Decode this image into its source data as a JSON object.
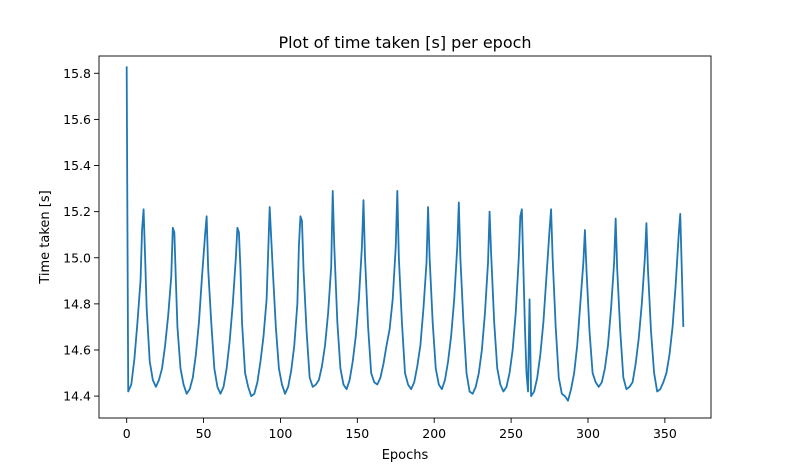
{
  "chart_data": {
    "type": "line",
    "title": "Plot of time taken [s] per epoch",
    "xlabel": "Epochs",
    "ylabel": "Time taken [s]",
    "xlim": [
      -18,
      380
    ],
    "ylim": [
      14.305,
      15.875
    ],
    "xticks": [
      0,
      50,
      100,
      150,
      200,
      250,
      300,
      350
    ],
    "yticks": [
      14.4,
      14.6,
      14.8,
      15.0,
      15.2,
      15.4,
      15.6,
      15.8
    ],
    "grid": false,
    "series": [
      {
        "color": "#1f77b4",
        "x": [
          0,
          1,
          3,
          5,
          7,
          9,
          10,
          11,
          12,
          13,
          15,
          17,
          19,
          21,
          23,
          25,
          27,
          29,
          30,
          31,
          32,
          33,
          35,
          37,
          39,
          41,
          43,
          45,
          47,
          49,
          51,
          52,
          53,
          55,
          57,
          59,
          61,
          63,
          65,
          67,
          69,
          71,
          72,
          73,
          74,
          75,
          77,
          79,
          81,
          83,
          85,
          87,
          89,
          91,
          92,
          93,
          95,
          97,
          99,
          101,
          103,
          105,
          107,
          109,
          111,
          112,
          113,
          114,
          115,
          117,
          119,
          121,
          123,
          125,
          127,
          129,
          131,
          133,
          134,
          135,
          137,
          139,
          141,
          143,
          145,
          147,
          149,
          151,
          153,
          154,
          155,
          157,
          159,
          161,
          163,
          165,
          167,
          169,
          171,
          173,
          175,
          176,
          177,
          179,
          181,
          183,
          185,
          187,
          189,
          191,
          193,
          195,
          196,
          197,
          199,
          201,
          203,
          205,
          207,
          209,
          211,
          213,
          215,
          216,
          217,
          219,
          221,
          223,
          225,
          227,
          229,
          231,
          233,
          235,
          236,
          237,
          239,
          241,
          243,
          245,
          247,
          249,
          251,
          253,
          255,
          256,
          257,
          258,
          259,
          260,
          261,
          262,
          263,
          265,
          267,
          269,
          271,
          273,
          275,
          276,
          277,
          279,
          281,
          283,
          285,
          287,
          289,
          291,
          293,
          295,
          297,
          298,
          299,
          301,
          303,
          305,
          307,
          309,
          311,
          313,
          315,
          317,
          318,
          319,
          321,
          323,
          325,
          327,
          329,
          331,
          333,
          335,
          337,
          338,
          339,
          341,
          343,
          345,
          347,
          349,
          351,
          353,
          355,
          357,
          359,
          360,
          361,
          362
        ],
        "y": [
          15.83,
          14.42,
          14.45,
          14.56,
          14.72,
          14.9,
          15.12,
          15.21,
          15.0,
          14.78,
          14.55,
          14.47,
          14.44,
          14.47,
          14.52,
          14.62,
          14.75,
          14.92,
          15.13,
          15.11,
          14.9,
          14.7,
          14.52,
          14.45,
          14.41,
          14.43,
          14.48,
          14.58,
          14.72,
          14.92,
          15.1,
          15.18,
          14.95,
          14.72,
          14.52,
          14.44,
          14.41,
          14.44,
          14.52,
          14.64,
          14.8,
          15.0,
          15.13,
          15.11,
          14.95,
          14.72,
          14.5,
          14.44,
          14.4,
          14.41,
          14.46,
          14.55,
          14.66,
          14.82,
          15.02,
          15.22,
          14.95,
          14.7,
          14.52,
          14.45,
          14.41,
          14.44,
          14.51,
          14.62,
          14.8,
          15.05,
          15.18,
          15.16,
          14.95,
          14.68,
          14.48,
          14.44,
          14.45,
          14.47,
          14.53,
          14.62,
          14.76,
          14.96,
          15.29,
          15.05,
          14.72,
          14.52,
          14.45,
          14.43,
          14.47,
          14.55,
          14.66,
          14.82,
          15.05,
          15.25,
          15.0,
          14.7,
          14.5,
          14.46,
          14.45,
          14.48,
          14.54,
          14.62,
          14.69,
          14.82,
          15.05,
          15.29,
          15.0,
          14.72,
          14.5,
          14.45,
          14.43,
          14.46,
          14.53,
          14.62,
          14.78,
          14.98,
          15.22,
          15.0,
          14.72,
          14.52,
          14.45,
          14.43,
          14.47,
          14.55,
          14.66,
          14.82,
          15.05,
          15.24,
          15.0,
          14.72,
          14.5,
          14.42,
          14.41,
          14.44,
          14.5,
          14.6,
          14.76,
          14.98,
          15.2,
          15.02,
          14.72,
          14.52,
          14.45,
          14.42,
          14.44,
          14.5,
          14.6,
          14.76,
          15.0,
          15.18,
          15.21,
          14.95,
          14.7,
          14.5,
          14.42,
          14.82,
          14.4,
          14.42,
          14.48,
          14.58,
          14.72,
          14.92,
          15.12,
          15.21,
          15.0,
          14.7,
          14.48,
          14.41,
          14.4,
          14.38,
          14.43,
          14.5,
          14.62,
          14.8,
          14.98,
          15.12,
          14.95,
          14.68,
          14.5,
          14.46,
          14.44,
          14.46,
          14.52,
          14.62,
          14.78,
          14.98,
          15.17,
          14.95,
          14.68,
          14.48,
          14.43,
          14.44,
          14.46,
          14.54,
          14.65,
          14.8,
          15.0,
          15.15,
          14.95,
          14.68,
          14.5,
          14.42,
          14.43,
          14.46,
          14.5,
          14.58,
          14.7,
          14.88,
          15.1,
          15.19,
          14.95,
          14.7
        ]
      }
    ]
  }
}
